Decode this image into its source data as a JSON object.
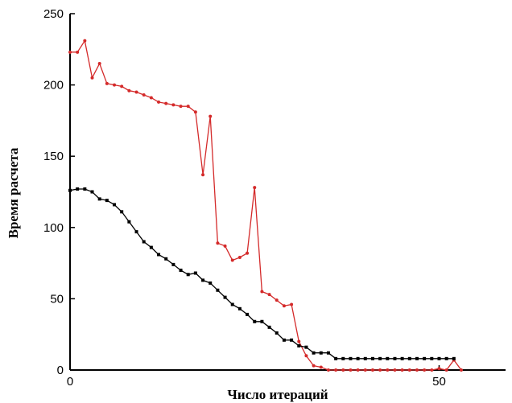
{
  "chart_data": {
    "type": "line",
    "title": "",
    "xlabel": "Число итераций",
    "ylabel": "Время расчета",
    "xlim": [
      0,
      59
    ],
    "ylim": [
      0,
      250
    ],
    "x_ticks": [
      0,
      50
    ],
    "y_ticks": [
      0,
      50,
      100,
      150,
      200,
      250
    ],
    "grid": false,
    "legend": "none",
    "series": [
      {
        "color": "#d42a2a",
        "marker": "circle",
        "x": [
          0,
          1,
          2,
          3,
          4,
          5,
          6,
          7,
          8,
          9,
          10,
          11,
          12,
          13,
          14,
          15,
          16,
          17,
          18,
          19,
          20,
          21,
          22,
          23,
          24,
          25,
          26,
          27,
          28,
          29,
          30,
          31,
          32,
          33,
          34,
          35,
          36,
          37,
          38,
          39,
          40,
          41,
          42,
          43,
          44,
          45,
          46,
          47,
          48,
          49,
          50,
          51,
          52,
          53
        ],
        "y": [
          223,
          223,
          231,
          205,
          215,
          201,
          200,
          199,
          196,
          195,
          193,
          191,
          188,
          187,
          186,
          185,
          185,
          181,
          137,
          178,
          89,
          87,
          77,
          79,
          82,
          128,
          55,
          53,
          49,
          45,
          46,
          20,
          10,
          3,
          2,
          0,
          0,
          0,
          0,
          0,
          0,
          0,
          0,
          0,
          0,
          0,
          0,
          0,
          0,
          0,
          1,
          0,
          7,
          0
        ]
      },
      {
        "color": "#000000",
        "marker": "square",
        "x": [
          0,
          1,
          2,
          3,
          4,
          5,
          6,
          7,
          8,
          9,
          10,
          11,
          12,
          13,
          14,
          15,
          16,
          17,
          18,
          19,
          20,
          21,
          22,
          23,
          24,
          25,
          26,
          27,
          28,
          29,
          30,
          31,
          32,
          33,
          34,
          35,
          36,
          37,
          38,
          39,
          40,
          41,
          42,
          43,
          44,
          45,
          46,
          47,
          48,
          49,
          50,
          51,
          52
        ],
        "y": [
          126,
          127,
          127,
          125,
          120,
          119,
          116,
          111,
          104,
          97,
          90,
          86,
          81,
          78,
          74,
          70,
          67,
          68,
          63,
          61,
          56,
          51,
          46,
          43,
          39,
          34,
          34,
          30,
          26,
          21,
          21,
          17,
          16,
          12,
          12,
          12,
          8,
          8,
          8,
          8,
          8,
          8,
          8,
          8,
          8,
          8,
          8,
          8,
          8,
          8,
          8,
          8,
          8
        ]
      }
    ]
  }
}
